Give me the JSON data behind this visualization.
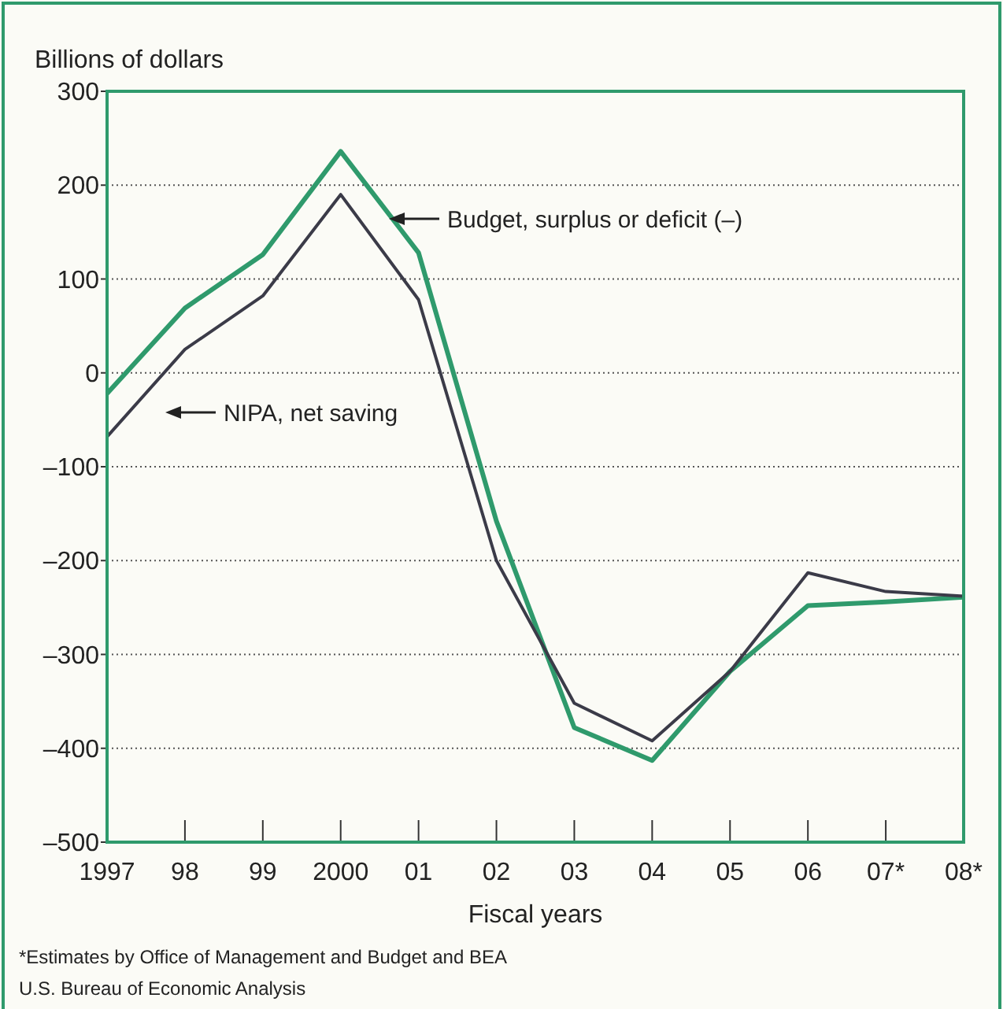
{
  "chart_data": {
    "type": "line",
    "ylabel": "Billions of dollars",
    "xlabel": "Fiscal years",
    "categories": [
      "1997",
      "98",
      "99",
      "2000",
      "01",
      "02",
      "03",
      "04",
      "05",
      "06",
      "07*",
      "08*"
    ],
    "ylim": [
      -500,
      300
    ],
    "yticks": [
      {
        "value": -500,
        "label": "–500"
      },
      {
        "value": -400,
        "label": "–400"
      },
      {
        "value": -300,
        "label": "–300"
      },
      {
        "value": -200,
        "label": "–200"
      },
      {
        "value": -100,
        "label": "–100"
      },
      0,
      100,
      200,
      300
    ],
    "grid": "y",
    "line_style": "solid",
    "series": [
      {
        "color": "#2f9a6c",
        "values": [
          -22,
          69,
          126,
          236,
          128,
          -158,
          -378,
          -413,
          -318,
          -248,
          -244,
          -239
        ]
      },
      {
        "color": "#3b3b48",
        "values": [
          -68,
          25,
          82,
          190,
          78,
          -200,
          -352,
          -392,
          -318,
          -213,
          -233,
          -238
        ]
      }
    ],
    "annotations": [
      "Budget, surplus or deficit (–)",
      "NIPA, net saving",
      "*Estimates by Office of Management and Budget and BEA",
      "U.S. Bureau of Economic Analysis"
    ]
  }
}
